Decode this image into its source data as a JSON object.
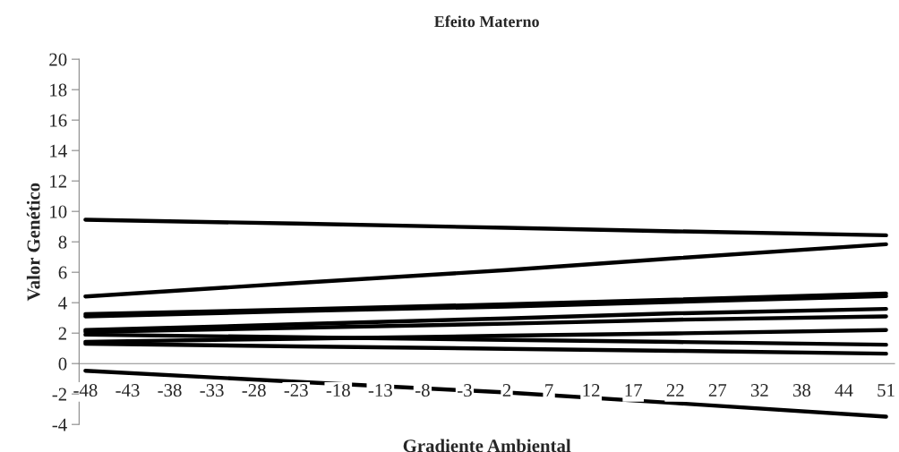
{
  "chart_data": {
    "type": "line",
    "title": "Efeito Materno",
    "xlabel": "Gradiente Ambiental",
    "ylabel": "Valor Genético",
    "categories": [
      "-48",
      "-43",
      "-38",
      "-33",
      "-28",
      "-23",
      "-18",
      "-13",
      "-8",
      "-3",
      "2",
      "7",
      "12",
      "17",
      "22",
      "27",
      "32",
      "38",
      "44",
      "51"
    ],
    "series": [
      {
        "color": "#000000",
        "values": [
          9.45,
          null,
          null,
          null,
          null,
          9.2,
          null,
          null,
          null,
          null,
          8.92,
          null,
          null,
          null,
          8.69,
          null,
          null,
          null,
          null,
          8.43
        ]
      },
      {
        "color": "#000000",
        "values": [
          4.41,
          null,
          null,
          null,
          null,
          5.29,
          null,
          null,
          null,
          null,
          6.14,
          null,
          null,
          null,
          6.92,
          null,
          null,
          null,
          null,
          7.84
        ]
      },
      {
        "color": "#000000",
        "values": [
          3.25,
          null,
          null,
          null,
          null,
          3.55,
          null,
          null,
          null,
          null,
          3.9,
          null,
          null,
          null,
          4.2,
          null,
          null,
          null,
          null,
          4.6
        ]
      },
      {
        "color": "#000000",
        "values": [
          3.1,
          null,
          null,
          null,
          null,
          3.45,
          null,
          null,
          null,
          null,
          3.75,
          null,
          null,
          null,
          4.05,
          null,
          null,
          null,
          null,
          4.43
        ]
      },
      {
        "color": "#000000",
        "values": [
          2.2,
          null,
          null,
          null,
          null,
          2.58,
          null,
          null,
          null,
          null,
          2.97,
          null,
          null,
          null,
          3.3,
          null,
          null,
          null,
          null,
          3.59
        ]
      },
      {
        "color": "#000000",
        "values": [
          2.08,
          null,
          null,
          null,
          null,
          2.35,
          null,
          null,
          null,
          null,
          2.62,
          null,
          null,
          null,
          2.88,
          null,
          null,
          null,
          null,
          3.1
        ]
      },
      {
        "color": "#000000",
        "values": [
          1.9,
          null,
          null,
          null,
          null,
          1.73,
          null,
          null,
          null,
          null,
          1.55,
          null,
          null,
          null,
          1.42,
          null,
          null,
          null,
          null,
          1.24
        ]
      },
      {
        "color": "#000000",
        "values": [
          1.43,
          null,
          null,
          null,
          null,
          1.63,
          null,
          null,
          null,
          null,
          1.83,
          null,
          null,
          null,
          1.98,
          null,
          null,
          null,
          null,
          2.2
        ]
      },
      {
        "color": "#000000",
        "values": [
          1.3,
          null,
          null,
          null,
          null,
          1.13,
          null,
          null,
          null,
          null,
          0.97,
          null,
          null,
          null,
          0.84,
          null,
          null,
          null,
          null,
          0.65
        ]
      },
      {
        "color": "#000000",
        "values": [
          -0.47,
          null,
          null,
          null,
          null,
          -1.2,
          null,
          null,
          null,
          null,
          -1.9,
          null,
          null,
          null,
          -2.6,
          null,
          null,
          null,
          null,
          -3.49
        ]
      }
    ],
    "ylim": [
      -4,
      20
    ],
    "yticks": [
      -4,
      -2,
      0,
      2,
      4,
      6,
      8,
      10,
      12,
      14,
      16,
      18,
      20
    ],
    "grid": false,
    "legend": false,
    "marker": "none",
    "line_style": "solid"
  }
}
